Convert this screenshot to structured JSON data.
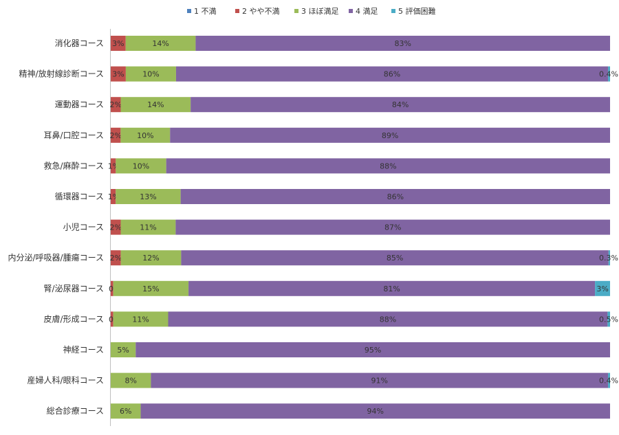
{
  "chart_data": {
    "type": "bar",
    "orientation": "horizontal",
    "stacked": true,
    "percent": true,
    "legend_position": "top",
    "grid": false,
    "categories": [
      "消化器コース",
      "精神/放射線診断コース",
      "運動器コース",
      "耳鼻/口腔コース",
      "救急/麻酔コース",
      "循環器コース",
      "小児コース",
      "内分泌/呼吸器/腫瘍コース",
      "腎/泌尿器コース",
      "皮膚/形成コース",
      "神経コース",
      "産婦人科/眼科コース",
      "総合診療コース"
    ],
    "series": [
      {
        "name": "1 不満",
        "color": "#4f81bd",
        "values": [
          0,
          0,
          0,
          0,
          0,
          0,
          0,
          0,
          0,
          0,
          0,
          0,
          0
        ],
        "labels": [
          "",
          "",
          "",
          "",
          "",
          "",
          "",
          "",
          "",
          "",
          "",
          "",
          ""
        ]
      },
      {
        "name": "2 やや不満",
        "color": "#c0504d",
        "values": [
          3,
          3,
          2,
          2,
          1,
          1,
          2,
          2,
          0.5,
          0.5,
          0,
          0,
          0
        ],
        "labels": [
          "3%",
          "3%",
          "2%",
          "2%",
          "1%",
          "1%",
          "2%",
          "2%",
          "0.5%",
          "0.5%",
          "",
          "",
          ""
        ]
      },
      {
        "name": "3 ほぼ満足",
        "color": "#9bbb59",
        "values": [
          14,
          10,
          14,
          10,
          10,
          13,
          11,
          12,
          15,
          11,
          5,
          8,
          6
        ],
        "labels": [
          "14%",
          "10%",
          "14%",
          "10%",
          "10%",
          "13%",
          "11%",
          "12%",
          "15%",
          "11%",
          "5%",
          "8%",
          "6%"
        ]
      },
      {
        "name": "4 満足",
        "color": "#8064a2",
        "values": [
          83,
          86,
          84,
          89,
          88,
          86,
          87,
          85,
          81,
          88,
          95,
          91,
          94
        ],
        "labels": [
          "83%",
          "86%",
          "84%",
          "89%",
          "88%",
          "86%",
          "87%",
          "85%",
          "81%",
          "88%",
          "95%",
          "91%",
          "94%"
        ]
      },
      {
        "name": "5 評価困難",
        "color": "#4bacc6",
        "values": [
          0,
          0.4,
          0,
          0,
          0,
          0,
          0,
          0.3,
          3,
          0.5,
          0,
          0.4,
          0
        ],
        "labels": [
          "",
          "0.4%",
          "",
          "",
          "",
          "",
          "",
          "0.3%",
          "3%",
          "0.5%",
          "",
          "0.4%",
          ""
        ]
      }
    ]
  }
}
